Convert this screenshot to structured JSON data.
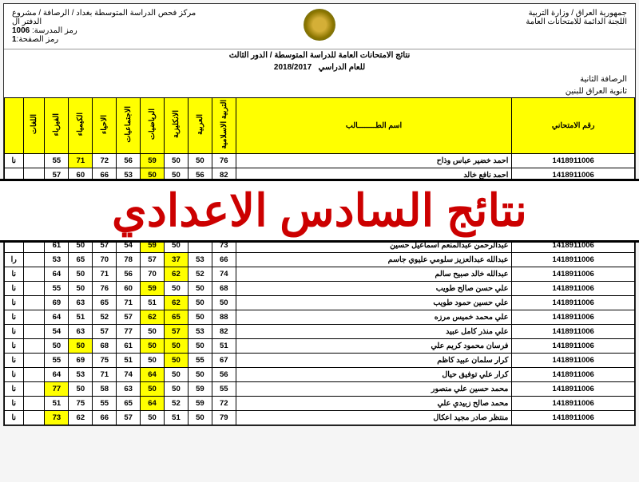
{
  "header": {
    "ministry1": "جمهورية العراق / وزارة التربية",
    "ministry2": "اللجنة الدائمة للامتحانات العامة",
    "center": "مركز فحص الدراسة المتوسطة بغداد / الرصافة / مشروع الدفتر ال",
    "school_code_label": "رمز المدرسة:",
    "school_code": "1006",
    "page_label": "رمز الصفحة:",
    "page_no": "1",
    "title": "نتائج الامتحانات العامة للدراسة المتوسطة / الدور الثالث",
    "year_label": "للعام الدراسي",
    "year": "2018/2017",
    "district": "الرصافة الثانية",
    "school": "ثانوية العراق للبنين"
  },
  "columns": [
    "رقم الامتحاني",
    "اسم الطــــــــالب",
    "التربية الاسلامية",
    "العربية",
    "الانكليزية",
    "الرياضيات",
    "الاجتماعيات",
    "الاحياء",
    "الكيمياء",
    "الفيزياء",
    "اللغات",
    ""
  ],
  "rows": [
    {
      "id": "1418911006",
      "name": "احمد خضير عباس وذاح",
      "s": [
        {
          "v": "76"
        },
        {
          "v": "50"
        },
        {
          "v": "50"
        },
        {
          "v": "59",
          "h": 1
        },
        {
          "v": "56"
        },
        {
          "v": "72"
        },
        {
          "v": "71",
          "h": 1
        },
        {
          "v": "55"
        },
        {
          "v": ""
        },
        {
          "v": "نا"
        }
      ]
    },
    {
      "id": "1418911006",
      "name": "احمد نافع خالد",
      "s": [
        {
          "v": "82"
        },
        {
          "v": "56"
        },
        {
          "v": "50"
        },
        {
          "v": "50",
          "h": 1
        },
        {
          "v": "53"
        },
        {
          "v": "66"
        },
        {
          "v": "60"
        },
        {
          "v": "57"
        },
        {
          "v": ""
        },
        {
          "v": ""
        }
      ]
    },
    {
      "id": "1418911006",
      "name": "عبدالرحمن عبدالمنعم اسماعيل حسين",
      "s": [
        {
          "v": "73"
        },
        {
          "v": ""
        },
        {
          "v": "50"
        },
        {
          "v": "59",
          "h": 1
        },
        {
          "v": "54"
        },
        {
          "v": "57"
        },
        {
          "v": "50"
        },
        {
          "v": "61"
        },
        {
          "v": ""
        },
        {
          "v": ""
        }
      ]
    },
    {
      "id": "1418911006",
      "name": "عبدالله عبدالعزيز سلومي عليوي جاسم",
      "s": [
        {
          "v": "66"
        },
        {
          "v": "53"
        },
        {
          "v": "37",
          "h": 1
        },
        {
          "v": "57"
        },
        {
          "v": "78"
        },
        {
          "v": "70"
        },
        {
          "v": "65"
        },
        {
          "v": "53"
        },
        {
          "v": ""
        },
        {
          "v": "را"
        }
      ]
    },
    {
      "id": "1418911006",
      "name": "عبدالله خالد صبيح سالم",
      "s": [
        {
          "v": "74"
        },
        {
          "v": "52"
        },
        {
          "v": "62",
          "h": 1
        },
        {
          "v": "70"
        },
        {
          "v": "56"
        },
        {
          "v": "71"
        },
        {
          "v": "50"
        },
        {
          "v": "64"
        },
        {
          "v": ""
        },
        {
          "v": "نا"
        }
      ]
    },
    {
      "id": "1418911006",
      "name": "علي حسن صالح طويب",
      "s": [
        {
          "v": "68"
        },
        {
          "v": "50"
        },
        {
          "v": "50"
        },
        {
          "v": "59",
          "h": 1
        },
        {
          "v": "60"
        },
        {
          "v": "76"
        },
        {
          "v": "50"
        },
        {
          "v": "55"
        },
        {
          "v": ""
        },
        {
          "v": "نا"
        }
      ]
    },
    {
      "id": "1418911006",
      "name": "علي حسين حمود طويب",
      "s": [
        {
          "v": "50"
        },
        {
          "v": "50"
        },
        {
          "v": "62",
          "h": 1
        },
        {
          "v": "51"
        },
        {
          "v": "71"
        },
        {
          "v": "65"
        },
        {
          "v": "63"
        },
        {
          "v": "69"
        },
        {
          "v": ""
        },
        {
          "v": "نا"
        }
      ]
    },
    {
      "id": "1418911006",
      "name": "علي محمد خميس مرزه",
      "s": [
        {
          "v": "88"
        },
        {
          "v": "50"
        },
        {
          "v": "65",
          "h": 1
        },
        {
          "v": "62",
          "h": 1
        },
        {
          "v": "57"
        },
        {
          "v": "52"
        },
        {
          "v": "51"
        },
        {
          "v": "64"
        },
        {
          "v": ""
        },
        {
          "v": "نا"
        }
      ]
    },
    {
      "id": "1418911006",
      "name": "علي منذر كامل عبيد",
      "s": [
        {
          "v": "82"
        },
        {
          "v": "53"
        },
        {
          "v": "57",
          "h": 1
        },
        {
          "v": "50"
        },
        {
          "v": "77"
        },
        {
          "v": "57"
        },
        {
          "v": "63"
        },
        {
          "v": "54"
        },
        {
          "v": ""
        },
        {
          "v": "نا"
        }
      ]
    },
    {
      "id": "1418911006",
      "name": "فرسان محمود كريم علي",
      "s": [
        {
          "v": "51"
        },
        {
          "v": "50"
        },
        {
          "v": "50",
          "h": 1
        },
        {
          "v": "50",
          "h": 1
        },
        {
          "v": "61"
        },
        {
          "v": "68"
        },
        {
          "v": "50",
          "h": 1
        },
        {
          "v": "50"
        },
        {
          "v": ""
        },
        {
          "v": "نا"
        }
      ]
    },
    {
      "id": "1418911006",
      "name": "كرار سلمان عبيد كاظم",
      "s": [
        {
          "v": "67"
        },
        {
          "v": "55"
        },
        {
          "v": "50",
          "h": 1
        },
        {
          "v": "50"
        },
        {
          "v": "51"
        },
        {
          "v": "75"
        },
        {
          "v": "69"
        },
        {
          "v": "55"
        },
        {
          "v": ""
        },
        {
          "v": "نا"
        }
      ]
    },
    {
      "id": "1418911006",
      "name": "كرار علي توفيق حيال",
      "s": [
        {
          "v": "56"
        },
        {
          "v": "50"
        },
        {
          "v": "50"
        },
        {
          "v": "64",
          "h": 1
        },
        {
          "v": "74"
        },
        {
          "v": "71"
        },
        {
          "v": "53"
        },
        {
          "v": "64"
        },
        {
          "v": ""
        },
        {
          "v": "نا"
        }
      ]
    },
    {
      "id": "1418911006",
      "name": "محمد حسين علي منصور",
      "s": [
        {
          "v": "55"
        },
        {
          "v": "59"
        },
        {
          "v": "50"
        },
        {
          "v": "50",
          "h": 1
        },
        {
          "v": "63"
        },
        {
          "v": "58"
        },
        {
          "v": "50"
        },
        {
          "v": "77",
          "h": 1
        },
        {
          "v": ""
        },
        {
          "v": "نا"
        }
      ]
    },
    {
      "id": "1418911006",
      "name": "محمد صالح زبيدي علي",
      "s": [
        {
          "v": "72"
        },
        {
          "v": "59"
        },
        {
          "v": "52"
        },
        {
          "v": "64",
          "h": 1
        },
        {
          "v": "65"
        },
        {
          "v": "55"
        },
        {
          "v": "75"
        },
        {
          "v": "51"
        },
        {
          "v": ""
        },
        {
          "v": "نا"
        }
      ]
    },
    {
      "id": "1418911006",
      "name": "منتظر صادر مجيد اعكال",
      "s": [
        {
          "v": "79"
        },
        {
          "v": "50"
        },
        {
          "v": "51"
        },
        {
          "v": "50"
        },
        {
          "v": "57"
        },
        {
          "v": "66"
        },
        {
          "v": "62"
        },
        {
          "v": "73",
          "h": 1
        },
        {
          "v": ""
        },
        {
          "v": "نا"
        }
      ]
    }
  ],
  "overlay": "نتائج السادس الاعدادي",
  "colors": {
    "header_bg": "#ffff00",
    "highlight": "#ffff00",
    "overlay_text": "#cc0000"
  }
}
